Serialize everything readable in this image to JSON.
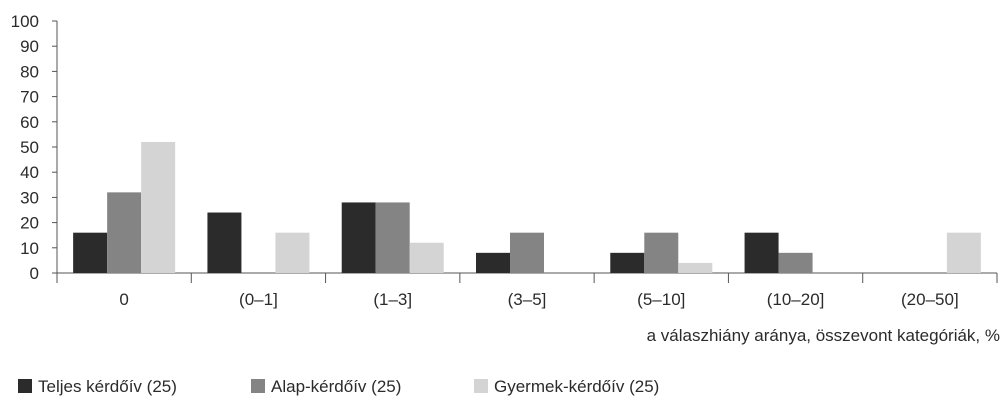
{
  "chart_data": {
    "type": "bar",
    "title": "",
    "xlabel": "a válaszhiány aránya, összevont kategóriák, %",
    "ylabel": "",
    "ylim": [
      0,
      100
    ],
    "yticks": [
      0,
      10,
      20,
      30,
      40,
      50,
      60,
      70,
      80,
      90,
      100
    ],
    "categories": [
      "0",
      "(0–1]",
      "(1–3]",
      "(3–5]",
      "(5–10]",
      "(10–20]",
      "(20–50]"
    ],
    "series": [
      {
        "name": "Teljes kérdőív (25)",
        "color": "#2b2b2b",
        "values": [
          16,
          24,
          28,
          8,
          8,
          16,
          0
        ]
      },
      {
        "name": "Alap-kérdőív (25)",
        "color": "#848484",
        "values": [
          32,
          0,
          28,
          16,
          16,
          8,
          0
        ]
      },
      {
        "name": "Gyermek-kérdőív (25)",
        "color": "#d4d4d4",
        "values": [
          52,
          16,
          12,
          0,
          4,
          0,
          16
        ]
      }
    ],
    "grid": false,
    "legend_position": "bottom-left"
  }
}
